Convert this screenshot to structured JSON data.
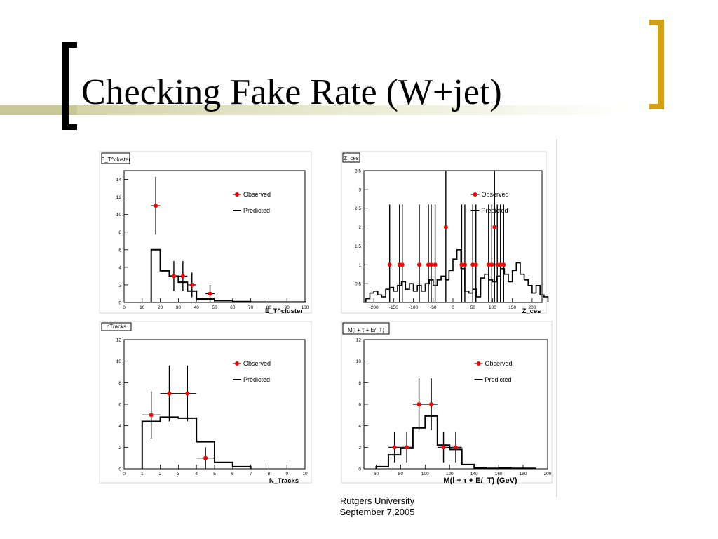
{
  "slide": {
    "title": "Checking Fake Rate (W+jet)",
    "footer_line1": "Rutgers University",
    "footer_line2": "September 7,2005",
    "colors": {
      "accent_bar": "#c7c896",
      "right_bracket": "#d4a017",
      "marker": "#ff0000"
    }
  },
  "chart_data": [
    {
      "type": "histogram",
      "title": "E_T^cluster",
      "xlabel": "E_T^cluster",
      "xlim": [
        0,
        100
      ],
      "ylim": [
        0,
        15
      ],
      "xticks": [
        0,
        10,
        20,
        30,
        40,
        50,
        60,
        70,
        80,
        90,
        100
      ],
      "yticks": [
        0,
        2,
        4,
        6,
        8,
        10,
        12,
        14
      ],
      "legend": [
        "Observed",
        "Predicted"
      ],
      "legend_position": "top-right",
      "predicted": {
        "edges": [
          15,
          20,
          25,
          30,
          35,
          40,
          45,
          50,
          55,
          60,
          65,
          70,
          75,
          80,
          85,
          90,
          95,
          100
        ],
        "values": [
          6.0,
          3.6,
          3.0,
          2.3,
          1.3,
          0.4,
          0.4,
          0.2,
          0.2,
          0.1,
          0.1,
          0.05,
          0.05,
          0.05,
          0.05,
          0.05,
          0.05
        ]
      },
      "observed": [
        {
          "x": 17.5,
          "y": 11,
          "yerr": 3.3,
          "xerr": 2.5
        },
        {
          "x": 27.5,
          "y": 3,
          "yerr": 1.7,
          "xerr": 2.5
        },
        {
          "x": 32.5,
          "y": 3,
          "yerr": 1.7,
          "xerr": 2.5
        },
        {
          "x": 37.5,
          "y": 2,
          "yerr": 1.4,
          "xerr": 2.5
        },
        {
          "x": 47.5,
          "y": 1,
          "yerr": 1.0,
          "xerr": 2.5
        }
      ]
    },
    {
      "type": "histogram",
      "title": "Z_ces",
      "xlabel": "Z_ces",
      "xlim": [
        -225,
        225
      ],
      "ylim": [
        0,
        3.5
      ],
      "xticks": [
        -200,
        -150,
        -100,
        -50,
        0,
        50,
        100,
        150,
        200
      ],
      "yticks": [
        0.5,
        1,
        1.5,
        2,
        2.5,
        3,
        3.5
      ],
      "legend": [
        "Observed",
        "Predicted"
      ],
      "legend_position": "top-right",
      "predicted": {
        "edges_start": -220,
        "bin_width": 10,
        "values": [
          0.1,
          0.25,
          0.3,
          0.2,
          0.15,
          0.35,
          0.4,
          0.3,
          0.45,
          0.55,
          0.35,
          0.5,
          0.3,
          0.45,
          0.3,
          0.5,
          0.6,
          0.45,
          0.6,
          0.7,
          0.6,
          0.85,
          1.15,
          1.4,
          0.9,
          0.3,
          0.25,
          0.35,
          0.15,
          0.65,
          0.75,
          0.6,
          0.55,
          0.7,
          0.9,
          0.75,
          0.55,
          0.85,
          1.05,
          0.75,
          0.6,
          0.45,
          0.25,
          0.45,
          0.2,
          0.15
        ]
      },
      "observed": [
        {
          "x": -160,
          "y": 1
        },
        {
          "x": -135,
          "y": 1
        },
        {
          "x": -128,
          "y": 1
        },
        {
          "x": -85,
          "y": 1
        },
        {
          "x": -62,
          "y": 1
        },
        {
          "x": -55,
          "y": 1
        },
        {
          "x": -45,
          "y": 1
        },
        {
          "x": -18,
          "y": 2
        },
        {
          "x": 22,
          "y": 1
        },
        {
          "x": 30,
          "y": 1
        },
        {
          "x": 50,
          "y": 1
        },
        {
          "x": 58,
          "y": 1
        },
        {
          "x": 90,
          "y": 1
        },
        {
          "x": 98,
          "y": 1
        },
        {
          "x": 105,
          "y": 2
        },
        {
          "x": 112,
          "y": 1
        },
        {
          "x": 120,
          "y": 1
        },
        {
          "x": 128,
          "y": 1
        }
      ]
    },
    {
      "type": "histogram",
      "title": "nTracks",
      "xlabel": "N_Tracks",
      "xlim": [
        0,
        10
      ],
      "ylim": [
        0,
        12
      ],
      "xticks": [
        0,
        1,
        2,
        3,
        4,
        5,
        6,
        7,
        8,
        9,
        10
      ],
      "yticks": [
        0,
        2,
        4,
        6,
        8,
        10,
        12
      ],
      "legend": [
        "Observed",
        "Predicted"
      ],
      "legend_position": "top-right",
      "predicted": {
        "edges": [
          1,
          2,
          3,
          4,
          5,
          6,
          7
        ],
        "values": [
          4.4,
          4.8,
          4.7,
          2.5,
          0.6,
          0.2
        ]
      },
      "observed": [
        {
          "x": 1.5,
          "y": 5,
          "yerr": 2.2,
          "xerr": 0.5
        },
        {
          "x": 2.5,
          "y": 7,
          "yerr": 2.6,
          "xerr": 0.5
        },
        {
          "x": 3.5,
          "y": 7,
          "yerr": 2.6,
          "xerr": 0.5
        },
        {
          "x": 4.5,
          "y": 1,
          "yerr": 1.0,
          "xerr": 0.5
        }
      ]
    },
    {
      "type": "histogram",
      "title": "M(l + τ + E/_T)",
      "xlabel": "M(l + τ + E/_T) (GeV)",
      "xlim": [
        50,
        200
      ],
      "ylim": [
        0,
        12
      ],
      "xticks": [
        60,
        80,
        100,
        120,
        140,
        160,
        180,
        200
      ],
      "yticks": [
        0,
        2,
        4,
        6,
        8,
        10,
        12
      ],
      "legend": [
        "Observed",
        "Predicted"
      ],
      "legend_position": "top-right",
      "predicted": {
        "edges": [
          60,
          70,
          80,
          90,
          100,
          110,
          120,
          130,
          140,
          150,
          160,
          170,
          180,
          190
        ],
        "values": [
          0.2,
          1.3,
          1.9,
          3.8,
          4.9,
          2.2,
          1.8,
          0.4,
          0.1,
          0.05,
          0.1,
          0.05,
          0.05
        ]
      },
      "observed": [
        {
          "x": 75,
          "y": 2,
          "yerr": 1.4,
          "xerr": 5
        },
        {
          "x": 85,
          "y": 2,
          "yerr": 1.4,
          "xerr": 5
        },
        {
          "x": 95,
          "y": 6,
          "yerr": 2.4,
          "xerr": 5
        },
        {
          "x": 105,
          "y": 6,
          "yerr": 2.4,
          "xerr": 5
        },
        {
          "x": 115,
          "y": 2,
          "yerr": 1.4,
          "xerr": 5
        },
        {
          "x": 125,
          "y": 2,
          "yerr": 1.4,
          "xerr": 5
        }
      ]
    }
  ]
}
